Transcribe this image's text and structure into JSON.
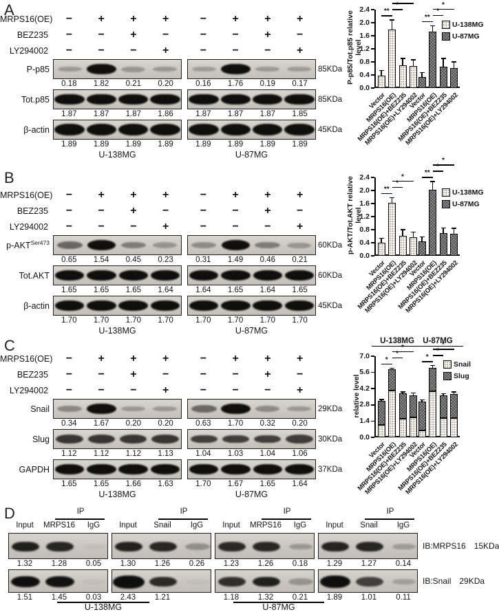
{
  "panels": {
    "A": {
      "letter": "A",
      "treatments": [
        {
          "name": "MRPS16(OE)",
          "signs": [
            "−",
            "+",
            "+",
            "+",
            "−",
            "+",
            "+",
            "+"
          ]
        },
        {
          "name": "BEZ235",
          "signs": [
            "−",
            "−",
            "+",
            "−",
            "−",
            "−",
            "+",
            "−"
          ]
        },
        {
          "name": "LY294002",
          "signs": [
            "−",
            "−",
            "−",
            "+",
            "−",
            "−",
            "−",
            "+"
          ]
        }
      ],
      "blots": [
        {
          "label": "P-p85",
          "sup": null,
          "kda": "85KDa",
          "values": [
            "0.18",
            "1.82",
            "0.21",
            "0.20",
            "0.16",
            "1.76",
            "0.19",
            "0.17"
          ]
        },
        {
          "label": "Tot.p85",
          "sup": null,
          "kda": "85KDa",
          "values": [
            "1.87",
            "1.87",
            "1.87",
            "1.86",
            "1.87",
            "1.87",
            "1.87",
            "1.85"
          ]
        },
        {
          "label": "β-actin",
          "sup": null,
          "kda": "45KDa",
          "values": [
            "1.89",
            "1.89",
            "1.89",
            "1.89",
            "1.89",
            "1.89",
            "1.89",
            "1.89"
          ]
        }
      ],
      "cell_lines": [
        "U-138MG",
        "U-87MG"
      ]
    },
    "B": {
      "letter": "B",
      "treatments": [
        {
          "name": "MRPS16(OE)",
          "signs": [
            "−",
            "+",
            "+",
            "+",
            "−",
            "+",
            "+",
            "+"
          ]
        },
        {
          "name": "BEZ235",
          "signs": [
            "−",
            "−",
            "+",
            "−",
            "−",
            "−",
            "+",
            "−"
          ]
        },
        {
          "name": "LY294002",
          "signs": [
            "−",
            "−",
            "−",
            "+",
            "−",
            "−",
            "−",
            "+"
          ]
        }
      ],
      "blots": [
        {
          "label": "p-AKT",
          "sup": "Ser473",
          "kda": "60KDa",
          "values": [
            "0.65",
            "1.54",
            "0.45",
            "0.23",
            "0.31",
            "1.49",
            "0.46",
            "0.21"
          ]
        },
        {
          "label": "Tot.AKT",
          "sup": null,
          "kda": "60KDa",
          "values": [
            "1.65",
            "1.65",
            "1.65",
            "1.64",
            "1.64",
            "1.65",
            "1.64",
            "1.65"
          ]
        },
        {
          "label": "β-actin",
          "sup": null,
          "kda": "45KDa",
          "values": [
            "1.70",
            "1.70",
            "1.70",
            "1.70",
            "1.70",
            "1.70",
            "1.70",
            "1.70"
          ]
        }
      ],
      "cell_lines": [
        "U-138MG",
        "U-87MG"
      ]
    },
    "C": {
      "letter": "C",
      "treatments": [
        {
          "name": "MRPS16(OE)",
          "signs": [
            "−",
            "+",
            "+",
            "+",
            "−",
            "+",
            "+",
            "+"
          ]
        },
        {
          "name": "BEZ235",
          "signs": [
            "−",
            "−",
            "+",
            "−",
            "−",
            "−",
            "+",
            "−"
          ]
        },
        {
          "name": "LY294002",
          "signs": [
            "−",
            "−",
            "−",
            "+",
            "−",
            "−",
            "−",
            "+"
          ]
        }
      ],
      "blots": [
        {
          "label": "Snail",
          "sup": null,
          "kda": "29KDa",
          "values": [
            "0.34",
            "1.67",
            "0.20",
            "0.20",
            "0.63",
            "1.70",
            "0.32",
            "0.20"
          ]
        },
        {
          "label": "Slug",
          "sup": null,
          "kda": "30KDa",
          "values": [
            "1.12",
            "1.12",
            "1.12",
            "1.13",
            "1.04",
            "1.03",
            "1.04",
            "1.06"
          ]
        },
        {
          "label": "GAPDH",
          "sup": null,
          "kda": "37KDa",
          "values": [
            "1.65",
            "1.65",
            "1.66",
            "1.63",
            "1.70",
            "1.67",
            "1.65",
            "1.64"
          ]
        }
      ],
      "cell_lines": [
        "U-138MG",
        "U-87MG"
      ]
    },
    "D": {
      "letter": "D",
      "groups": [
        {
          "ip": "IP",
          "lanes": [
            "Input",
            "MRPS16",
            "IgG"
          ],
          "top_values": [
            "1.32",
            "1.28",
            "0.05"
          ],
          "bottom_values": [
            "1.51",
            "1.45",
            "0.03"
          ]
        },
        {
          "ip": "IP",
          "lanes": [
            "Input",
            "Snail",
            "IgG"
          ],
          "top_values": [
            "1.30",
            "1.26",
            "0.26"
          ],
          "bottom_values": [
            "2.43",
            "1.21",
            ""
          ]
        },
        {
          "ip": "IP",
          "lanes": [
            "Input",
            "MRPS16",
            "IgG"
          ],
          "top_values": [
            "1.23",
            "1.26",
            "0.18"
          ],
          "bottom_values": [
            "1.18",
            "1.32",
            "0.21"
          ]
        },
        {
          "ip": "IP",
          "lanes": [
            "Input",
            "Snail",
            "IgG"
          ],
          "top_values": [
            "1.29",
            "1.27",
            "0.14"
          ],
          "bottom_values": [
            "1.89",
            "1.01",
            "0.11"
          ]
        }
      ],
      "ib_rows": [
        {
          "label": "IB:MRPS16",
          "kda": "15KDa"
        },
        {
          "label": "IB:Snail",
          "kda": "29KDa"
        }
      ],
      "cell_lines": [
        "U-138MG",
        "U-87MG"
      ]
    }
  },
  "chart_data": [
    {
      "id": "A",
      "type": "bar",
      "title": "",
      "ylabel": "P-p85/Tot.p85 relative level",
      "ylabel_lines": [
        "P-p85/Tot.p85 relative",
        "level"
      ],
      "ylim": [
        0,
        2.4
      ],
      "yticks": [
        "0.0",
        "0.4",
        "0.8",
        "1.2",
        "1.6",
        "2.0",
        "2.4"
      ],
      "categories": [
        "Vector",
        "MRPS16(OE)",
        "MRPS16(OE)+BEZ235",
        "MRPS16(OE)+LY294002"
      ],
      "series": [
        {
          "name": "U-138MG",
          "pattern": "light",
          "values": [
            0.38,
            1.78,
            0.7,
            0.68
          ],
          "errors": [
            0.17,
            0.32,
            0.22,
            0.2
          ]
        },
        {
          "name": "U-87MG",
          "pattern": "dark",
          "values": [
            0.33,
            1.73,
            0.65,
            0.61
          ],
          "errors": [
            0.16,
            0.19,
            0.27,
            0.21
          ]
        }
      ],
      "sig": [
        {
          "a": 0,
          "b": 1,
          "label": "**"
        },
        {
          "a": 1,
          "b": 2,
          "label": "*"
        },
        {
          "a": 1,
          "b": 3,
          "label": "*"
        },
        {
          "a": 4,
          "b": 5,
          "label": "**"
        },
        {
          "a": 5,
          "b": 6,
          "label": "*"
        },
        {
          "a": 5,
          "b": 7,
          "label": "*"
        }
      ],
      "legend_position": "right",
      "grid": false
    },
    {
      "id": "B",
      "type": "bar",
      "title": "",
      "ylabel": "p-AKT/Tot.AKT relative level",
      "ylabel_lines": [
        "p-AKT/Tot.AKT relative",
        "level"
      ],
      "ylim": [
        0,
        2.4
      ],
      "yticks": [
        "0.0",
        "0.4",
        "0.8",
        "1.2",
        "1.6",
        "2.0",
        "2.4"
      ],
      "categories": [
        "Vector",
        "MRPS16(OE)",
        "MRPS16(OE)+BEZ235",
        "MRPS16(OE)+LY294002"
      ],
      "series": [
        {
          "name": "U-138MG",
          "pattern": "light",
          "values": [
            0.4,
            1.62,
            0.62,
            0.56
          ],
          "errors": [
            0.15,
            0.18,
            0.2,
            0.18
          ]
        },
        {
          "name": "U-87MG",
          "pattern": "dark",
          "values": [
            0.45,
            2.02,
            0.69,
            0.68
          ],
          "errors": [
            0.14,
            0.27,
            0.18,
            0.18
          ]
        }
      ],
      "sig": [
        {
          "a": 0,
          "b": 1,
          "label": "**"
        },
        {
          "a": 1,
          "b": 2,
          "label": "*"
        },
        {
          "a": 1,
          "b": 3,
          "label": "*"
        },
        {
          "a": 4,
          "b": 5,
          "label": "**"
        },
        {
          "a": 5,
          "b": 6,
          "label": "*"
        },
        {
          "a": 5,
          "b": 7,
          "label": "*"
        }
      ],
      "legend_position": "right",
      "grid": false
    },
    {
      "id": "C",
      "type": "stacked-bar",
      "title": "",
      "group_titles": [
        "U-138MG",
        "U-87MG"
      ],
      "ylabel": "relative level",
      "ylabel_lines": [
        "relative level"
      ],
      "ylim": [
        0,
        7.0
      ],
      "yticks": [
        "0.0",
        "1.4",
        "2.8",
        "4.2",
        "5.6",
        "7.0"
      ],
      "categories": [
        "Vector",
        "MRPS16(OE)",
        "MRPS16(OE)+BEZ235",
        "MRPS16(OE)+LY294002"
      ],
      "stack_series": [
        {
          "name": "Snail",
          "pattern": "light",
          "values": [
            1.06,
            4.06,
            1.62,
            1.7,
            0.62,
            3.97,
            1.64,
            1.68
          ],
          "errors": [
            0.12,
            0.12,
            0.12,
            0.12,
            0.14,
            0.12,
            0.12,
            0.12
          ]
        },
        {
          "name": "Slug",
          "pattern": "dark",
          "values": [
            2.09,
            1.8,
            2.15,
            1.94,
            2.47,
            2.01,
            2.0,
            2.03
          ],
          "errors": [
            0.15,
            0.15,
            0.18,
            0.22,
            0.2,
            0.25,
            0.18,
            0.25
          ]
        }
      ],
      "sig": [
        {
          "a": 0,
          "b": 1,
          "label": "*"
        },
        {
          "a": 1,
          "b": 2,
          "label": "*"
        },
        {
          "a": 1,
          "b": 3,
          "label": "*"
        },
        {
          "a": 4,
          "b": 5,
          "label": "*"
        },
        {
          "a": 5,
          "b": 6,
          "label": "*"
        },
        {
          "a": 5,
          "b": 7,
          "label": "*"
        }
      ],
      "legend_position": "right",
      "grid": false
    }
  ]
}
